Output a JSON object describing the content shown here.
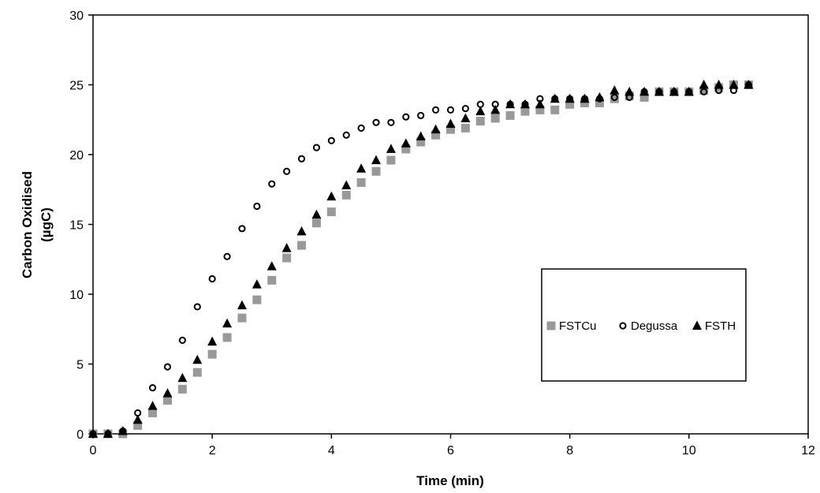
{
  "chart_data": {
    "type": "scatter",
    "title": "",
    "xlabel": "Time (min)",
    "ylabel_line1": "Carbon Oxidised",
    "ylabel_line2": "(µgC)",
    "xlim": [
      0,
      12
    ],
    "ylim": [
      0,
      30
    ],
    "xticks": [
      0,
      2,
      4,
      6,
      8,
      10,
      12
    ],
    "yticks": [
      0,
      5,
      10,
      15,
      20,
      25,
      30
    ],
    "grid": false,
    "legend_position": "center-right",
    "x": [
      0,
      0.25,
      0.5,
      0.75,
      1.0,
      1.25,
      1.5,
      1.75,
      2.0,
      2.25,
      2.5,
      2.75,
      3.0,
      3.25,
      3.5,
      3.75,
      4.0,
      4.25,
      4.5,
      4.75,
      5.0,
      5.25,
      5.5,
      5.75,
      6.0,
      6.25,
      6.5,
      6.75,
      7.0,
      7.25,
      7.5,
      7.75,
      8.0,
      8.25,
      8.5,
      8.75,
      9.0,
      9.25,
      9.5,
      9.75,
      10.0,
      10.25,
      10.5,
      10.75,
      11.0
    ],
    "series": [
      {
        "name": "FSTCu",
        "marker": "square",
        "color": "#999999",
        "values": [
          0,
          0,
          0,
          0.6,
          1.5,
          2.4,
          3.2,
          4.4,
          5.7,
          6.9,
          8.3,
          9.6,
          11.0,
          12.6,
          13.5,
          15.1,
          15.9,
          17.1,
          18.0,
          18.8,
          19.6,
          20.4,
          20.9,
          21.4,
          21.8,
          21.9,
          22.4,
          22.6,
          22.8,
          23.1,
          23.2,
          23.2,
          23.6,
          23.7,
          23.7,
          24.0,
          24.2,
          24.1,
          24.5,
          24.5,
          24.5,
          24.6,
          24.8,
          25.0,
          25.0
        ]
      },
      {
        "name": "Degussa",
        "marker": "circle-open",
        "color": "#000000",
        "values": [
          0,
          0,
          0.2,
          1.5,
          3.3,
          4.8,
          6.7,
          9.1,
          11.1,
          12.7,
          14.7,
          16.3,
          17.9,
          18.8,
          19.7,
          20.5,
          21.0,
          21.4,
          21.9,
          22.3,
          22.3,
          22.7,
          22.8,
          23.2,
          23.2,
          23.3,
          23.6,
          23.6,
          23.6,
          23.6,
          24.0,
          24.0,
          24.0,
          24.0,
          24.0,
          24.1,
          24.1,
          24.5,
          24.5,
          24.5,
          24.5,
          24.5,
          24.6,
          24.6,
          25.0
        ]
      },
      {
        "name": "FSTH",
        "marker": "triangle",
        "color": "#000000",
        "values": [
          0,
          0,
          0.2,
          1.0,
          2.0,
          2.9,
          4.0,
          5.3,
          6.6,
          7.9,
          9.2,
          10.7,
          12.0,
          13.3,
          14.5,
          15.7,
          17.0,
          17.8,
          19.0,
          19.6,
          20.4,
          20.8,
          21.3,
          21.8,
          22.2,
          22.6,
          23.1,
          23.2,
          23.6,
          23.6,
          23.6,
          24.0,
          24.0,
          24.0,
          24.1,
          24.6,
          24.5,
          24.5,
          24.5,
          24.5,
          24.5,
          25.0,
          25.0,
          25.0,
          25.0
        ]
      }
    ]
  }
}
